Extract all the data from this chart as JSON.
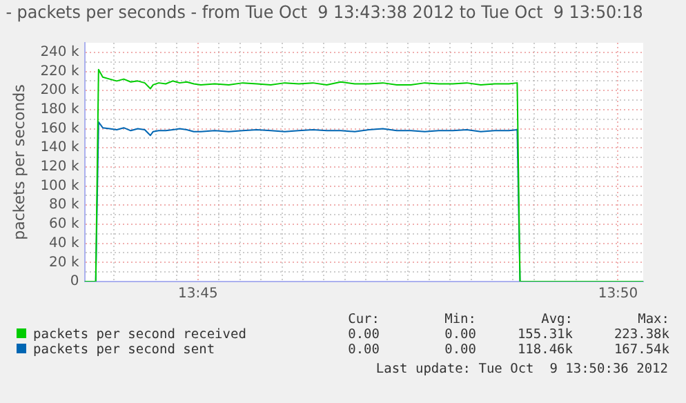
{
  "chart_data": {
    "type": "line",
    "title": "- packets per seconds - from Tue Oct  9 13:43:38 2012 to Tue Oct  9 13:50:18",
    "ylabel": "packets per seconds",
    "x": [
      13.7275,
      13.72972,
      13.73028,
      13.73111,
      13.7325,
      13.73389,
      13.73528,
      13.73667,
      13.73806,
      13.73944,
      13.74056,
      13.74111,
      13.74222,
      13.74361,
      13.745,
      13.74639,
      13.74778,
      13.74917,
      13.75056,
      13.75333,
      13.75611,
      13.75889,
      13.76167,
      13.76444,
      13.76722,
      13.77,
      13.77278,
      13.77556,
      13.77833,
      13.78111,
      13.78389,
      13.78667,
      13.78944,
      13.79222,
      13.795,
      13.79778,
      13.80056,
      13.80333,
      13.80611,
      13.80889,
      13.81167,
      13.81333,
      13.81389,
      13.83833
    ],
    "series": [
      {
        "name": "packets per second received",
        "color": "#00cc00",
        "values": [
          0,
          0,
          222000,
          214000,
          212000,
          210000,
          212000,
          209000,
          210000,
          208000,
          202000,
          206000,
          208000,
          207000,
          210000,
          208000,
          209000,
          207000,
          206000,
          207000,
          206000,
          208000,
          207000,
          206000,
          208000,
          207000,
          208000,
          206000,
          209000,
          207000,
          207000,
          208000,
          206000,
          206000,
          208000,
          207000,
          207000,
          208000,
          206000,
          207000,
          207000,
          208000,
          0,
          0
        ]
      },
      {
        "name": "packets per second sent",
        "color": "#0066b3",
        "values": [
          0,
          0,
          167000,
          161000,
          160000,
          159000,
          161000,
          158000,
          160000,
          159000,
          153000,
          157000,
          158000,
          158000,
          159000,
          160000,
          159000,
          157000,
          157000,
          158000,
          157000,
          158000,
          159000,
          158000,
          157000,
          158000,
          159000,
          158000,
          158000,
          157000,
          159000,
          160000,
          158000,
          158000,
          157000,
          158000,
          158000,
          159000,
          157000,
          158000,
          158000,
          159000,
          0,
          0
        ]
      }
    ],
    "xlim": [
      13.7275,
      13.83833
    ],
    "xticks": [
      {
        "value": 13.73333,
        "label": null
      },
      {
        "value": 13.74167,
        "label": null
      },
      {
        "value": 13.74583,
        "label": null
      },
      {
        "value": 13.75,
        "label": "13:45"
      },
      {
        "value": 13.75417,
        "label": null
      },
      {
        "value": 13.75833,
        "label": null
      },
      {
        "value": 13.7625,
        "label": null
      },
      {
        "value": 13.76667,
        "label": null
      },
      {
        "value": 13.77083,
        "label": null
      },
      {
        "value": 13.775,
        "label": null
      },
      {
        "value": 13.77917,
        "label": null
      },
      {
        "value": 13.78333,
        "label": null
      },
      {
        "value": 13.7875,
        "label": null
      },
      {
        "value": 13.79167,
        "label": null
      },
      {
        "value": 13.79583,
        "label": null
      },
      {
        "value": 13.8,
        "label": null
      },
      {
        "value": 13.80417,
        "label": null
      },
      {
        "value": 13.80833,
        "label": null
      },
      {
        "value": 13.8125,
        "label": null
      },
      {
        "value": 13.81667,
        "label": null
      },
      {
        "value": 13.82083,
        "label": null
      },
      {
        "value": 13.825,
        "label": null
      },
      {
        "value": 13.82917,
        "label": null
      },
      {
        "value": 13.83333,
        "label": "13:50"
      }
    ],
    "ylim": [
      0,
      250000
    ],
    "yticks": [
      {
        "value": 0,
        "label": "0"
      },
      {
        "value": 10000,
        "label": null
      },
      {
        "value": 20000,
        "label": "20 k"
      },
      {
        "value": 30000,
        "label": null
      },
      {
        "value": 40000,
        "label": "40 k"
      },
      {
        "value": 50000,
        "label": null
      },
      {
        "value": 60000,
        "label": "60 k"
      },
      {
        "value": 70000,
        "label": null
      },
      {
        "value": 80000,
        "label": "80 k"
      },
      {
        "value": 90000,
        "label": null
      },
      {
        "value": 100000,
        "label": "100 k"
      },
      {
        "value": 110000,
        "label": null
      },
      {
        "value": 120000,
        "label": "120 k"
      },
      {
        "value": 130000,
        "label": null
      },
      {
        "value": 140000,
        "label": "140 k"
      },
      {
        "value": 150000,
        "label": null
      },
      {
        "value": 160000,
        "label": "160 k"
      },
      {
        "value": 170000,
        "label": null
      },
      {
        "value": 180000,
        "label": "180 k"
      },
      {
        "value": 190000,
        "label": null
      },
      {
        "value": 200000,
        "label": "200 k"
      },
      {
        "value": 210000,
        "label": null
      },
      {
        "value": 220000,
        "label": "220 k"
      },
      {
        "value": 230000,
        "label": null
      },
      {
        "value": 240000,
        "label": "240 k"
      }
    ],
    "grid": true,
    "legend": "bottom",
    "marker": "none",
    "line_style": "solid",
    "annotations": [
      "Cur:",
      "Min:",
      "Avg:",
      "Max:",
      "0.00",
      "0.00",
      "155.31k",
      "223.38k",
      "0.00",
      "0.00",
      "118.46k",
      "167.54k",
      "Last update: Tue Oct  9 13:50:36 2012"
    ]
  }
}
